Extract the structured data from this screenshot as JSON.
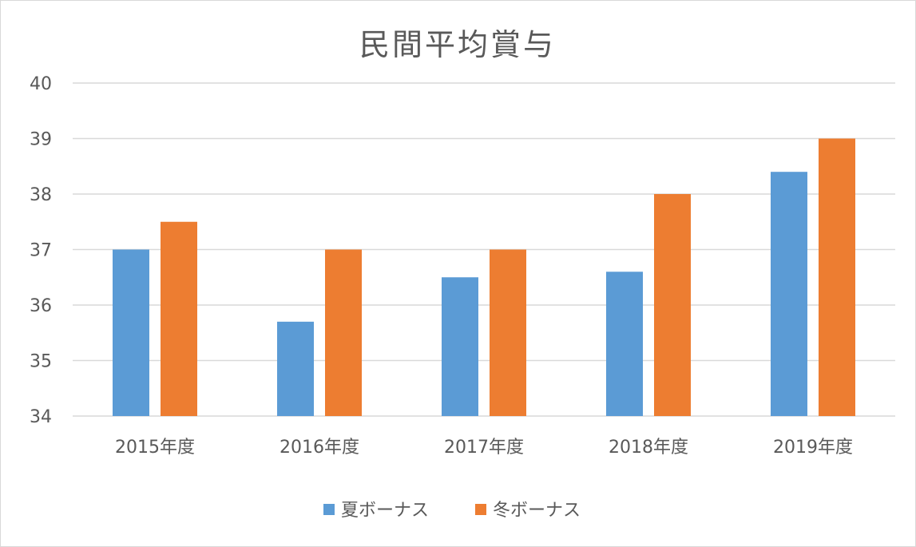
{
  "chart_data": {
    "type": "bar",
    "title": "民間平均賞与",
    "categories": [
      "2015年度",
      "2016年度",
      "2017年度",
      "2018年度",
      "2019年度"
    ],
    "series": [
      {
        "name": "夏ボーナス",
        "color": "#5b9bd5",
        "values": [
          37.0,
          35.7,
          36.5,
          36.6,
          38.4
        ]
      },
      {
        "name": "冬ボーナス",
        "color": "#ed7d31",
        "values": [
          37.5,
          37.0,
          37.0,
          38.0,
          39.0
        ]
      }
    ],
    "xlabel": "",
    "ylabel": "",
    "ylim": [
      34,
      40
    ],
    "yticks": [
      34,
      35,
      36,
      37,
      38,
      39,
      40
    ],
    "grid": true,
    "legend_position": "bottom"
  }
}
